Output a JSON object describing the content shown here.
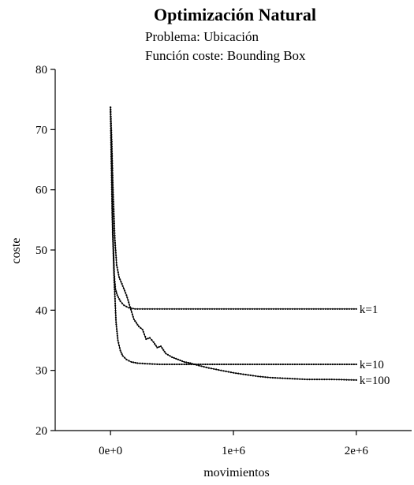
{
  "chart_data": {
    "type": "line",
    "title": "Optimización Natural",
    "subtitle_1": "Problema: Ubicación",
    "subtitle_2": "Función coste: Bounding Box",
    "xlabel": "movimientos",
    "ylabel": "coste",
    "xlim": [
      -450000,
      2450000
    ],
    "ylim": [
      20,
      80
    ],
    "x_ticks": [
      0,
      1000000,
      2000000
    ],
    "x_tick_labels": [
      "0e+0",
      "1e+6",
      "2e+6"
    ],
    "y_ticks": [
      20,
      30,
      40,
      50,
      60,
      70,
      80
    ],
    "y_tick_labels": [
      "20",
      "30",
      "40",
      "50",
      "60",
      "70",
      "80"
    ],
    "grid": false,
    "legend": "none",
    "series": [
      {
        "name": "k=1",
        "points": [
          [
            0,
            73.7
          ],
          [
            10000,
            62.0
          ],
          [
            20000,
            52.0
          ],
          [
            30000,
            46.0
          ],
          [
            40000,
            43.5
          ],
          [
            55000,
            42.5
          ],
          [
            80000,
            41.5
          ],
          [
            110000,
            40.8
          ],
          [
            150000,
            40.4
          ],
          [
            200000,
            40.2
          ],
          [
            300000,
            40.2
          ],
          [
            500000,
            40.2
          ],
          [
            1000000,
            40.2
          ],
          [
            1500000,
            40.2
          ],
          [
            2000000,
            40.2
          ]
        ]
      },
      {
        "name": "k=10",
        "points": [
          [
            0,
            73.7
          ],
          [
            15000,
            55.0
          ],
          [
            30000,
            45.0
          ],
          [
            45000,
            38.0
          ],
          [
            60000,
            35.0
          ],
          [
            80000,
            33.3
          ],
          [
            100000,
            32.4
          ],
          [
            130000,
            31.8
          ],
          [
            170000,
            31.4
          ],
          [
            220000,
            31.2
          ],
          [
            300000,
            31.1
          ],
          [
            400000,
            31.0
          ],
          [
            600000,
            31.0
          ],
          [
            1000000,
            31.0
          ],
          [
            1500000,
            31.0
          ],
          [
            2000000,
            31.0
          ]
        ]
      },
      {
        "name": "k=100",
        "points": [
          [
            0,
            73.7
          ],
          [
            10000,
            68.0
          ],
          [
            20000,
            60.0
          ],
          [
            35000,
            52.0
          ],
          [
            50000,
            47.5
          ],
          [
            70000,
            45.5
          ],
          [
            100000,
            44.0
          ],
          [
            130000,
            42.5
          ],
          [
            160000,
            40.5
          ],
          [
            190000,
            38.5
          ],
          [
            230000,
            37.3
          ],
          [
            260000,
            36.8
          ],
          [
            290000,
            35.2
          ],
          [
            320000,
            35.4
          ],
          [
            350000,
            34.7
          ],
          [
            380000,
            33.8
          ],
          [
            410000,
            34.0
          ],
          [
            450000,
            32.8
          ],
          [
            500000,
            32.2
          ],
          [
            550000,
            31.8
          ],
          [
            600000,
            31.4
          ],
          [
            650000,
            31.2
          ],
          [
            700000,
            30.9
          ],
          [
            800000,
            30.4
          ],
          [
            900000,
            30.0
          ],
          [
            1000000,
            29.6
          ],
          [
            1100000,
            29.3
          ],
          [
            1200000,
            29.0
          ],
          [
            1300000,
            28.8
          ],
          [
            1400000,
            28.7
          ],
          [
            1500000,
            28.6
          ],
          [
            1600000,
            28.5
          ],
          [
            1800000,
            28.5
          ],
          [
            2000000,
            28.4
          ]
        ]
      }
    ]
  }
}
